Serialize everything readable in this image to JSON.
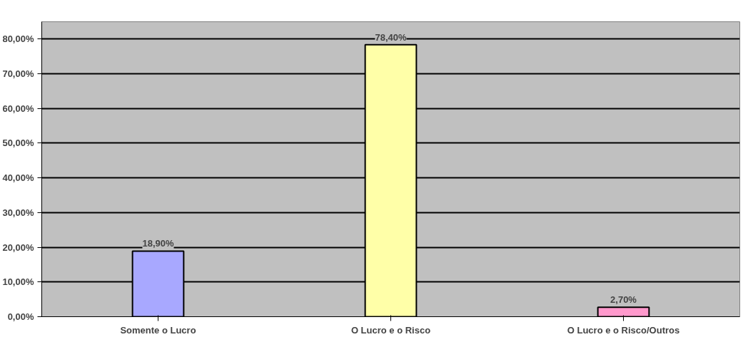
{
  "chart_data": {
    "type": "bar",
    "categories": [
      "Somente o Lucro",
      "O Lucro e o Risco",
      "O Lucro e o Risco/Outros"
    ],
    "values": [
      18.9,
      78.4,
      2.7
    ],
    "colors": [
      "#a8a8ff",
      "#ffffa8",
      "#ff99cc"
    ],
    "value_labels": [
      "18,90%",
      "78,40%",
      "2,70%"
    ],
    "ylim": [
      0,
      85
    ],
    "yticks": [
      {
        "value": 0,
        "label": "0,00%"
      },
      {
        "value": 10,
        "label": "10,00%"
      },
      {
        "value": 20,
        "label": "20,00%"
      },
      {
        "value": 30,
        "label": "30,00%"
      },
      {
        "value": 40,
        "label": "40,00%"
      },
      {
        "value": 50,
        "label": "50,00%"
      },
      {
        "value": 60,
        "label": "60,00%"
      },
      {
        "value": 70,
        "label": "70,00%"
      },
      {
        "value": 80,
        "label": "80,00%"
      }
    ],
    "grid": "y"
  }
}
